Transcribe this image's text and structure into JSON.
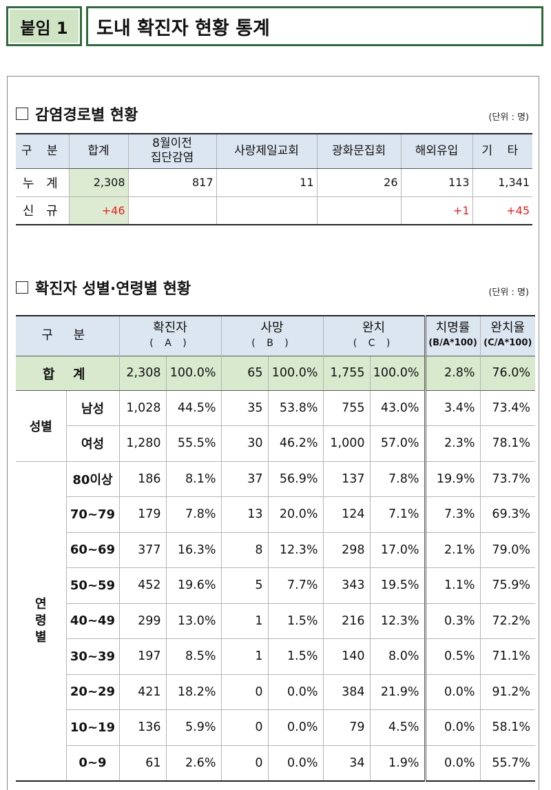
{
  "header": {
    "tag": "붙임 1",
    "title": "도내 확진자 현황 통계"
  },
  "section1": {
    "title": "감염경로별 현황",
    "unit": "(단위 : 명)",
    "columns": [
      "구 분",
      "합계",
      "8월이전",
      "집단감염",
      "사랑제일교회",
      "광화문집회",
      "해외유입",
      "기 타"
    ],
    "rows": [
      {
        "label": "누 계",
        "cells": [
          "2,308",
          "817",
          "11",
          "26",
          "113",
          "1,341"
        ]
      },
      {
        "label": "신 규",
        "cells": [
          "+46",
          "",
          "",
          "",
          "+1",
          "+45"
        ]
      }
    ]
  },
  "section2": {
    "title": "확진자 성별·연령별 현황",
    "unit": "(단위 : 명)",
    "headers": {
      "category": "구 분",
      "confirmed": "확진자",
      "confirmed_sub": "( A )",
      "death": "사망",
      "death_sub": "( B )",
      "recovered": "완치",
      "recovered_sub": "( C )",
      "fatality": "치명률",
      "fatality_sub": "(B/A*100)",
      "recovery": "완치율",
      "recovery_sub": "(C/A*100)"
    },
    "total": {
      "label": "합 계",
      "cells": [
        "2,308",
        "100.0%",
        "65",
        "100.0%",
        "1,755",
        "100.0%",
        "2.8%",
        "76.0%"
      ]
    },
    "gender_group": "성별",
    "age_group_chars": [
      "연",
      "령",
      "별"
    ],
    "gender_rows": [
      {
        "label": "남성",
        "cells": [
          "1,028",
          "44.5%",
          "35",
          "53.8%",
          "755",
          "43.0%",
          "3.4%",
          "73.4%"
        ]
      },
      {
        "label": "여성",
        "cells": [
          "1,280",
          "55.5%",
          "30",
          "46.2%",
          "1,000",
          "57.0%",
          "2.3%",
          "78.1%"
        ]
      }
    ],
    "age_rows": [
      {
        "label": "80이상",
        "cells": [
          "186",
          "8.1%",
          "37",
          "56.9%",
          "137",
          "7.8%",
          "19.9%",
          "73.7%"
        ]
      },
      {
        "label": "70~79",
        "cells": [
          "179",
          "7.8%",
          "13",
          "20.0%",
          "124",
          "7.1%",
          "7.3%",
          "69.3%"
        ]
      },
      {
        "label": "60~69",
        "cells": [
          "377",
          "16.3%",
          "8",
          "12.3%",
          "298",
          "17.0%",
          "2.1%",
          "79.0%"
        ]
      },
      {
        "label": "50~59",
        "cells": [
          "452",
          "19.6%",
          "5",
          "7.7%",
          "343",
          "19.5%",
          "1.1%",
          "75.9%"
        ]
      },
      {
        "label": "40~49",
        "cells": [
          "299",
          "13.0%",
          "1",
          "1.5%",
          "216",
          "12.3%",
          "0.3%",
          "72.2%"
        ]
      },
      {
        "label": "30~39",
        "cells": [
          "197",
          "8.5%",
          "1",
          "1.5%",
          "140",
          "8.0%",
          "0.5%",
          "71.1%"
        ]
      },
      {
        "label": "20~29",
        "cells": [
          "421",
          "18.2%",
          "0",
          "0.0%",
          "384",
          "21.9%",
          "0.0%",
          "91.2%"
        ]
      },
      {
        "label": "10~19",
        "cells": [
          "136",
          "5.9%",
          "0",
          "0.0%",
          "79",
          "4.5%",
          "0.0%",
          "58.1%"
        ]
      },
      {
        "label": "0~9",
        "cells": [
          "61",
          "2.6%",
          "0",
          "0.0%",
          "34",
          "1.9%",
          "0.0%",
          "55.7%"
        ]
      }
    ]
  },
  "colors": {
    "header_fill": "#dce6f1",
    "total_fill": "#d8e9cd",
    "increase": "#ee1c1c",
    "frame": "#2e6b3a"
  }
}
